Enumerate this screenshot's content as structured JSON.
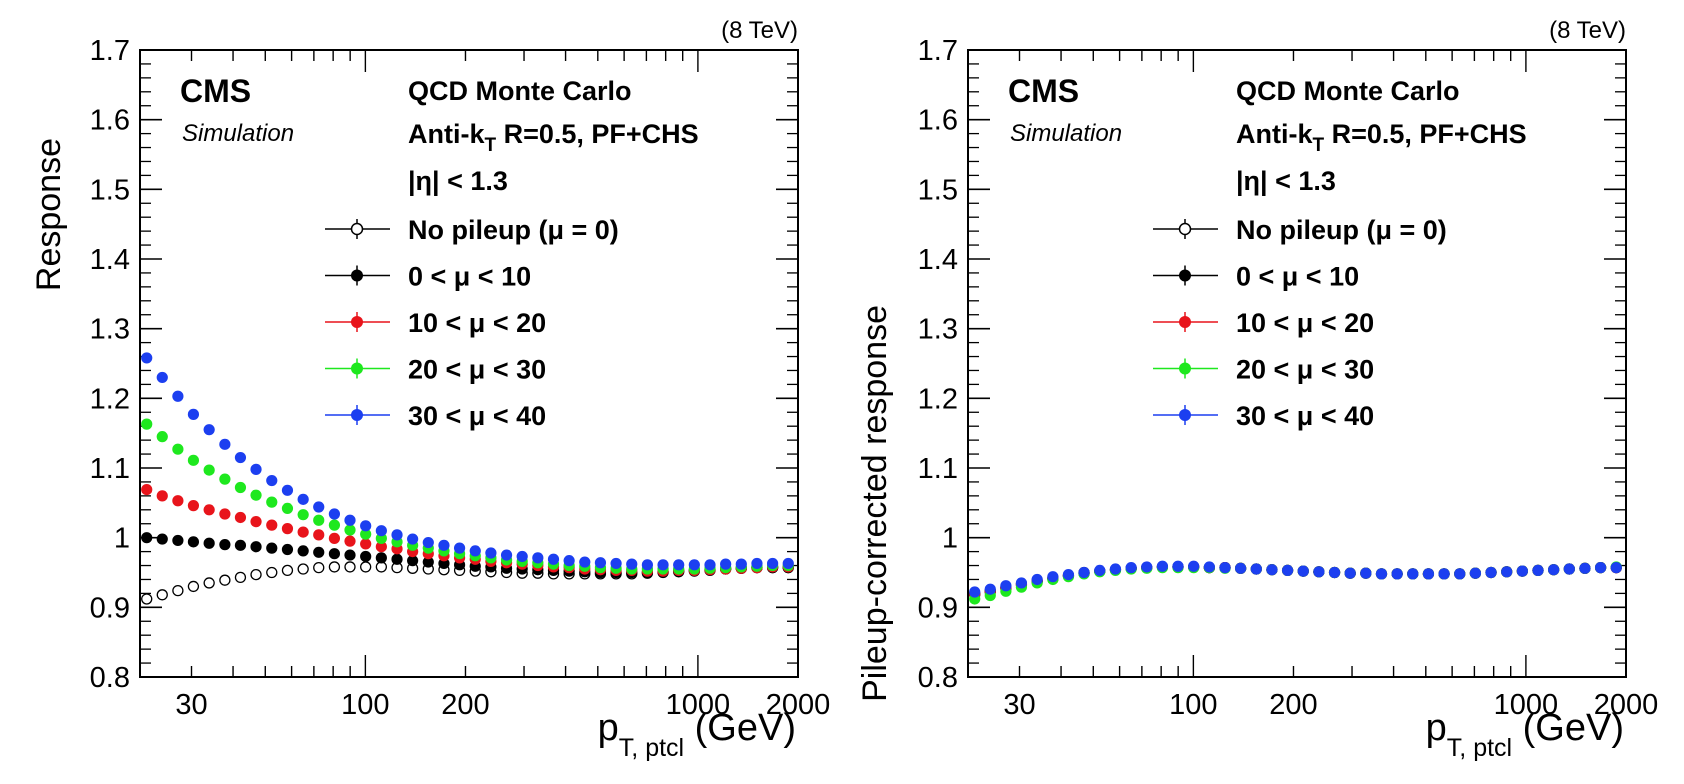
{
  "experiment": "CMS",
  "simulation_label": "Simulation",
  "energy_label": "(8 TeV)",
  "sample_label": "QCD Monte Carlo",
  "algo_prefix": "Anti-k",
  "algo_sub": "T",
  "algo_suffix": " R=0.5, PF+CHS",
  "eta_cut": "|η| < 1.3",
  "x_unit": "(GeV)",
  "colors": {
    "no_pileup": "#000000",
    "mu_0_10": "#000000",
    "mu_10_20": "#e8141b",
    "mu_20_30": "#1ee81e",
    "mu_30_40": "#1c3ff0"
  },
  "chart_data": [
    {
      "type": "scatter",
      "xlabel": "p",
      "xlabel_sub": "T, ptcl",
      "ylabel": "Response",
      "xscale": "log",
      "xlim": [
        21,
        2000
      ],
      "ylim": [
        0.8,
        1.7
      ],
      "x_ticks": [
        30,
        100,
        200,
        1000,
        2000
      ],
      "y_ticks": [
        0.8,
        0.9,
        1,
        1.1,
        1.2,
        1.3,
        1.4,
        1.5,
        1.6,
        1.7
      ],
      "y_tick_labels": [
        "0.8",
        "0.9",
        "1",
        "1.1",
        "1.2",
        "1.3",
        "1.4",
        "1.5",
        "1.6",
        "1.7"
      ],
      "legend_position": "top-right",
      "x": [
        22,
        24.5,
        27.3,
        30.4,
        33.9,
        37.8,
        42.1,
        46.9,
        52.3,
        58.3,
        65,
        72.4,
        80.7,
        89.9,
        100.2,
        111.7,
        124.5,
        138.7,
        154.6,
        172.3,
        192,
        214,
        238.5,
        265.8,
        296.2,
        330.1,
        367.9,
        410,
        456.9,
        509.2,
        567.5,
        632.5,
        704.9,
        785.6,
        875.5,
        975.7,
        1087.4,
        1211.9,
        1350.6,
        1505.2,
        1677.5,
        1869.5
      ],
      "series": [
        {
          "name": "No pileup (μ = 0)",
          "marker": "open",
          "values": [
            0.912,
            0.918,
            0.924,
            0.93,
            0.935,
            0.939,
            0.943,
            0.947,
            0.95,
            0.953,
            0.955,
            0.957,
            0.958,
            0.958,
            0.958,
            0.958,
            0.957,
            0.956,
            0.955,
            0.954,
            0.953,
            0.952,
            0.951,
            0.95,
            0.949,
            0.949,
            0.948,
            0.948,
            0.948,
            0.948,
            0.948,
            0.948,
            0.949,
            0.95,
            0.951,
            0.952,
            0.953,
            0.955,
            0.956,
            0.957,
            0.957,
            0.957
          ]
        },
        {
          "name": "0 < μ < 10",
          "marker": "filled",
          "values": [
            1.0,
            0.998,
            0.996,
            0.994,
            0.992,
            0.99,
            0.989,
            0.987,
            0.985,
            0.983,
            0.981,
            0.979,
            0.977,
            0.975,
            0.973,
            0.971,
            0.969,
            0.967,
            0.965,
            0.963,
            0.961,
            0.959,
            0.958,
            0.956,
            0.955,
            0.954,
            0.953,
            0.952,
            0.951,
            0.95,
            0.95,
            0.95,
            0.95,
            0.951,
            0.952,
            0.953,
            0.954,
            0.955,
            0.956,
            0.957,
            0.957,
            0.957
          ]
        },
        {
          "name": "10 < μ < 20",
          "marker": "filled",
          "values": [
            1.069,
            1.06,
            1.053,
            1.046,
            1.04,
            1.034,
            1.029,
            1.023,
            1.018,
            1.013,
            1.008,
            1.004,
            0.999,
            0.995,
            0.991,
            0.987,
            0.984,
            0.98,
            0.977,
            0.974,
            0.971,
            0.969,
            0.966,
            0.964,
            0.962,
            0.96,
            0.958,
            0.957,
            0.955,
            0.954,
            0.953,
            0.953,
            0.952,
            0.952,
            0.953,
            0.953,
            0.954,
            0.955,
            0.956,
            0.957,
            0.958,
            0.958
          ]
        },
        {
          "name": "20 < μ < 30",
          "marker": "filled",
          "values": [
            1.163,
            1.145,
            1.127,
            1.111,
            1.097,
            1.084,
            1.072,
            1.061,
            1.051,
            1.042,
            1.033,
            1.025,
            1.018,
            1.011,
            1.005,
            0.999,
            0.994,
            0.989,
            0.985,
            0.981,
            0.977,
            0.974,
            0.971,
            0.968,
            0.966,
            0.964,
            0.962,
            0.96,
            0.959,
            0.957,
            0.956,
            0.955,
            0.955,
            0.955,
            0.955,
            0.955,
            0.956,
            0.957,
            0.958,
            0.959,
            0.96,
            0.96
          ]
        },
        {
          "name": "30 < μ < 40",
          "marker": "filled",
          "values": [
            1.258,
            1.23,
            1.203,
            1.177,
            1.155,
            1.134,
            1.115,
            1.098,
            1.082,
            1.068,
            1.055,
            1.044,
            1.034,
            1.025,
            1.017,
            1.01,
            1.004,
            0.998,
            0.993,
            0.989,
            0.985,
            0.981,
            0.978,
            0.975,
            0.973,
            0.971,
            0.969,
            0.967,
            0.965,
            0.964,
            0.963,
            0.962,
            0.961,
            0.961,
            0.961,
            0.961,
            0.961,
            0.962,
            0.962,
            0.963,
            0.963,
            0.963
          ]
        }
      ]
    },
    {
      "type": "scatter",
      "xlabel": "p",
      "xlabel_sub": "T, ptcl",
      "ylabel": "Pileup-corrected response",
      "xscale": "log",
      "xlim": [
        21,
        2000
      ],
      "ylim": [
        0.8,
        1.7
      ],
      "x_ticks": [
        30,
        100,
        200,
        1000,
        2000
      ],
      "y_ticks": [
        0.8,
        0.9,
        1,
        1.1,
        1.2,
        1.3,
        1.4,
        1.5,
        1.6,
        1.7
      ],
      "y_tick_labels": [
        "0.8",
        "0.9",
        "1",
        "1.1",
        "1.2",
        "1.3",
        "1.4",
        "1.5",
        "1.6",
        "1.7"
      ],
      "legend_position": "top-right",
      "x": [
        22,
        24.5,
        27.3,
        30.4,
        33.9,
        37.8,
        42.1,
        46.9,
        52.3,
        58.3,
        65,
        72.4,
        80.7,
        89.9,
        100.2,
        111.7,
        124.5,
        138.7,
        154.6,
        172.3,
        192,
        214,
        238.5,
        265.8,
        296.2,
        330.1,
        367.9,
        410,
        456.9,
        509.2,
        567.5,
        632.5,
        704.9,
        785.6,
        875.5,
        975.7,
        1087.4,
        1211.9,
        1350.6,
        1505.2,
        1677.5,
        1869.5
      ],
      "series": [
        {
          "name": "No pileup (μ = 0)",
          "marker": "open",
          "values": [
            0.918,
            0.922,
            0.927,
            0.932,
            0.937,
            0.941,
            0.945,
            0.949,
            0.952,
            0.954,
            0.956,
            0.957,
            0.958,
            0.958,
            0.958,
            0.957,
            0.957,
            0.956,
            0.955,
            0.954,
            0.953,
            0.952,
            0.951,
            0.95,
            0.949,
            0.949,
            0.948,
            0.948,
            0.948,
            0.948,
            0.948,
            0.948,
            0.949,
            0.95,
            0.951,
            0.952,
            0.953,
            0.954,
            0.955,
            0.956,
            0.957,
            0.957
          ]
        },
        {
          "name": "0 < μ < 10",
          "marker": "filled",
          "values": [
            0.92,
            0.924,
            0.929,
            0.934,
            0.938,
            0.942,
            0.946,
            0.95,
            0.952,
            0.954,
            0.956,
            0.957,
            0.958,
            0.958,
            0.958,
            0.957,
            0.957,
            0.956,
            0.955,
            0.954,
            0.953,
            0.952,
            0.951,
            0.95,
            0.949,
            0.949,
            0.948,
            0.948,
            0.948,
            0.948,
            0.948,
            0.948,
            0.949,
            0.95,
            0.951,
            0.952,
            0.953,
            0.954,
            0.955,
            0.956,
            0.957,
            0.957
          ]
        },
        {
          "name": "10 < μ < 20",
          "marker": "filled",
          "values": [
            0.919,
            0.923,
            0.928,
            0.933,
            0.938,
            0.942,
            0.946,
            0.949,
            0.952,
            0.954,
            0.956,
            0.957,
            0.958,
            0.958,
            0.958,
            0.957,
            0.957,
            0.956,
            0.955,
            0.954,
            0.953,
            0.952,
            0.951,
            0.95,
            0.949,
            0.949,
            0.948,
            0.948,
            0.948,
            0.948,
            0.948,
            0.948,
            0.949,
            0.95,
            0.951,
            0.952,
            0.953,
            0.954,
            0.955,
            0.956,
            0.957,
            0.957
          ]
        },
        {
          "name": "20 < μ < 30",
          "marker": "filled",
          "values": [
            0.912,
            0.917,
            0.923,
            0.929,
            0.935,
            0.94,
            0.944,
            0.948,
            0.951,
            0.953,
            0.955,
            0.956,
            0.957,
            0.957,
            0.957,
            0.957,
            0.956,
            0.956,
            0.955,
            0.954,
            0.953,
            0.952,
            0.951,
            0.95,
            0.949,
            0.949,
            0.948,
            0.948,
            0.948,
            0.948,
            0.948,
            0.948,
            0.949,
            0.95,
            0.951,
            0.952,
            0.953,
            0.954,
            0.955,
            0.956,
            0.957,
            0.958
          ]
        },
        {
          "name": "30 < μ < 40",
          "marker": "filled",
          "values": [
            0.922,
            0.926,
            0.931,
            0.935,
            0.94,
            0.944,
            0.947,
            0.95,
            0.953,
            0.955,
            0.957,
            0.958,
            0.959,
            0.959,
            0.959,
            0.958,
            0.957,
            0.956,
            0.955,
            0.954,
            0.953,
            0.952,
            0.951,
            0.95,
            0.949,
            0.949,
            0.948,
            0.948,
            0.948,
            0.948,
            0.948,
            0.948,
            0.949,
            0.95,
            0.951,
            0.952,
            0.953,
            0.954,
            0.955,
            0.956,
            0.957,
            0.957
          ]
        }
      ]
    }
  ]
}
